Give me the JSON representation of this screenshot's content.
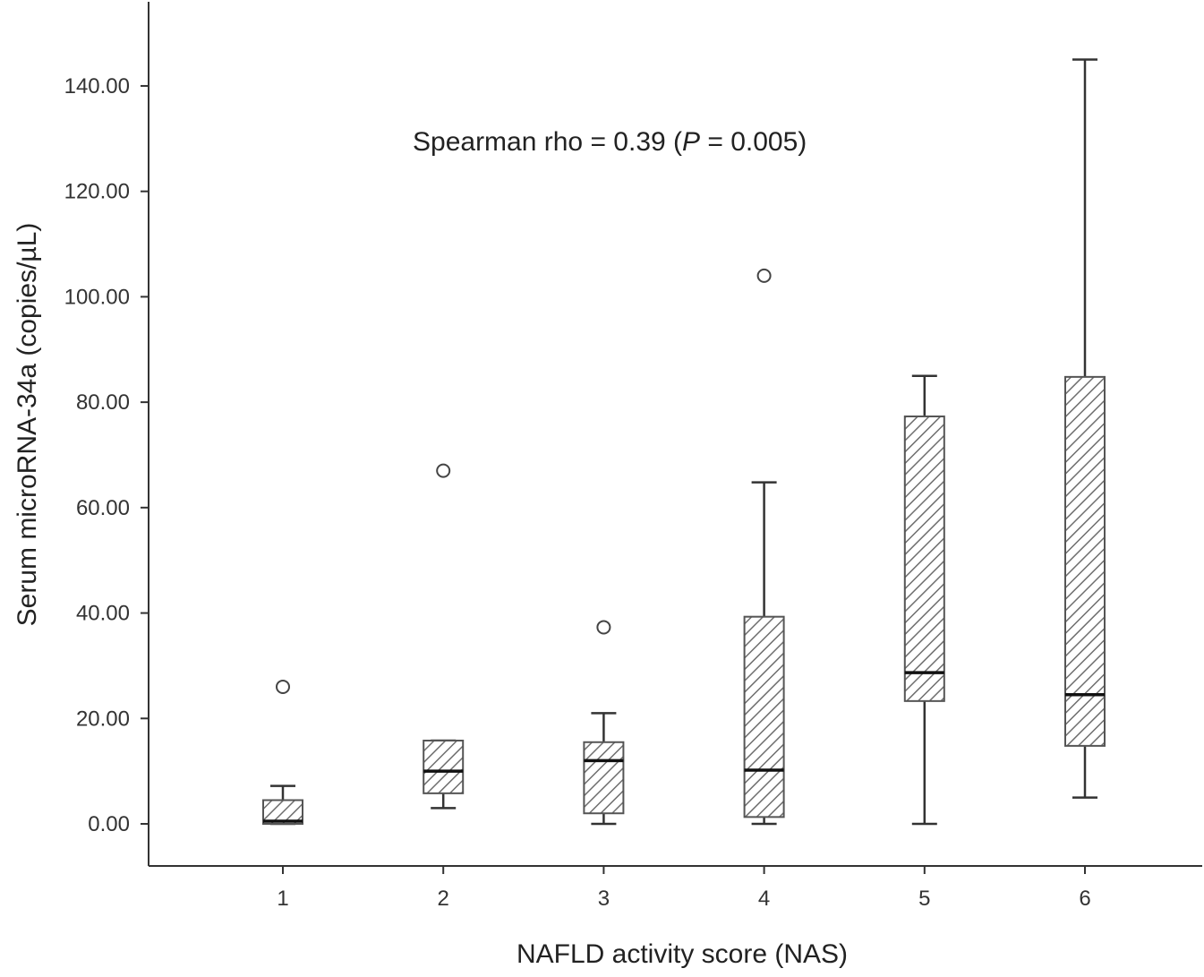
{
  "chart_data": {
    "type": "box",
    "title": "",
    "xlabel": "NAFLD activity score (NAS)",
    "ylabel": "Serum microRNA-34a (copies/µL)",
    "ylim": [
      -8,
      155
    ],
    "yticks": [
      "0.00",
      "20.00",
      "40.00",
      "60.00",
      "80.00",
      "100.00",
      "120.00",
      "140.00"
    ],
    "ytick_values": [
      0,
      20,
      40,
      60,
      80,
      100,
      120,
      140
    ],
    "categories": [
      "1",
      "2",
      "3",
      "4",
      "5",
      "6"
    ],
    "boxes": [
      {
        "category": "1",
        "whisker_low": 0.0,
        "q1": 0.0,
        "median": 0.5,
        "q3": 4.5,
        "whisker_high": 7.2,
        "outliers": [
          26.0
        ]
      },
      {
        "category": "2",
        "whisker_low": 3.0,
        "q1": 5.8,
        "median": 10.0,
        "q3": 15.8,
        "whisker_high": 15.8,
        "outliers": [
          67.0
        ]
      },
      {
        "category": "3",
        "whisker_low": 0.0,
        "q1": 2.0,
        "median": 12.0,
        "q3": 15.5,
        "whisker_high": 21.0,
        "outliers": [
          37.3
        ]
      },
      {
        "category": "4",
        "whisker_low": 0.0,
        "q1": 1.3,
        "median": 10.2,
        "q3": 39.3,
        "whisker_high": 64.8,
        "outliers": [
          104.0
        ]
      },
      {
        "category": "5",
        "whisker_low": 0.0,
        "q1": 23.3,
        "median": 28.7,
        "q3": 77.3,
        "whisker_high": 85.0,
        "outliers": []
      },
      {
        "category": "6",
        "whisker_low": 5.0,
        "q1": 14.8,
        "median": 24.5,
        "q3": 84.8,
        "whisker_high": 145.0,
        "outliers": []
      }
    ],
    "annotation": {
      "prefix": "Spearman rho = 0.39 (",
      "italic": "P",
      "suffix": " = 0.005)"
    },
    "grid": false,
    "legend": "none",
    "colors": {
      "axis": "#333333",
      "box_edge": "#555555",
      "hatch": "#6e6e6e",
      "median": "#111111",
      "whisker": "#333333",
      "outlier": "#444444"
    }
  }
}
